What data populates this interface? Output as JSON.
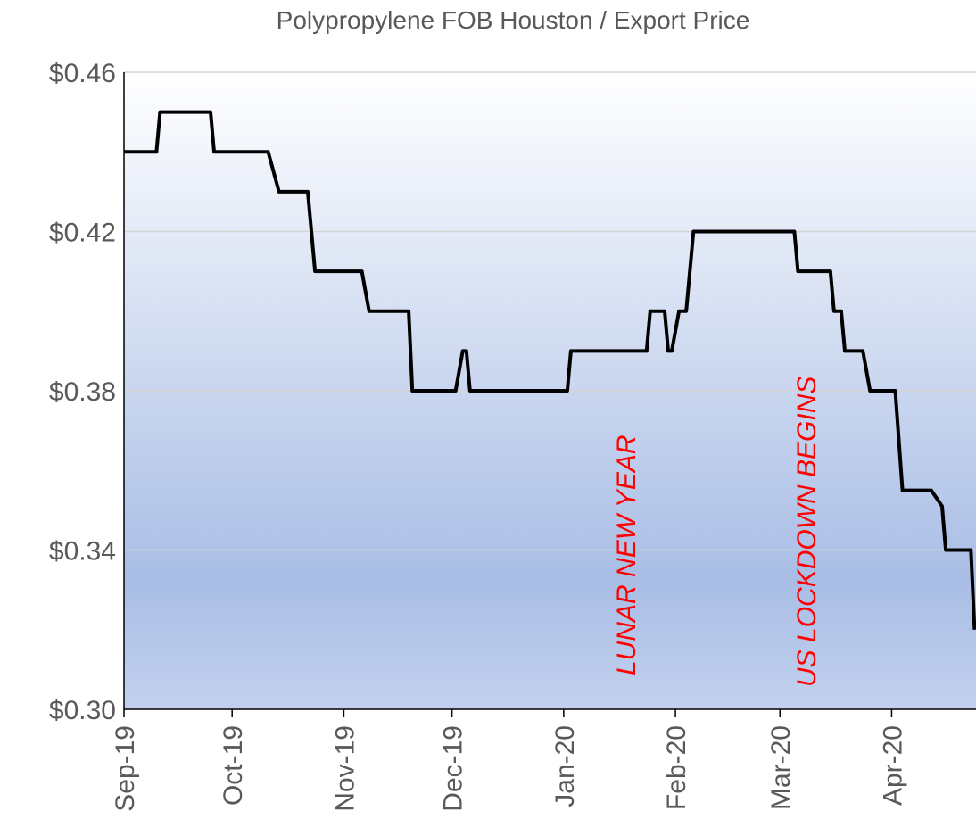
{
  "chart_data": {
    "type": "line",
    "title": "Polypropylene FOB Houston / Export Price",
    "x": [
      0,
      9,
      10,
      24,
      25,
      40,
      43,
      51,
      53,
      66,
      68,
      77,
      79,
      80,
      92,
      94,
      95,
      96,
      123,
      124,
      145,
      146,
      150,
      151,
      152,
      154,
      156,
      158,
      186,
      187,
      196,
      197,
      199,
      200,
      205,
      207,
      214,
      216,
      224,
      227,
      228,
      235,
      236
    ],
    "series": [
      {
        "name": "Polypropylene FOB Houston / Export Price",
        "color": "#000000",
        "values": [
          0.44,
          0.44,
          0.45,
          0.45,
          0.44,
          0.44,
          0.43,
          0.43,
          0.41,
          0.41,
          0.4,
          0.4,
          0.4,
          0.38,
          0.38,
          0.39,
          0.39,
          0.38,
          0.38,
          0.39,
          0.39,
          0.4,
          0.4,
          0.39,
          0.39,
          0.4,
          0.4,
          0.42,
          0.42,
          0.41,
          0.41,
          0.4,
          0.4,
          0.39,
          0.39,
          0.38,
          0.38,
          0.355,
          0.355,
          0.351,
          0.34,
          0.34,
          0.32
        ]
      }
    ],
    "xlim": [
      0,
      236.4
    ],
    "xticks": [
      {
        "value": 0,
        "label": "Sep-19"
      },
      {
        "value": 30,
        "label": "Oct-19"
      },
      {
        "value": 61,
        "label": "Nov-19"
      },
      {
        "value": 91,
        "label": "Dec-19"
      },
      {
        "value": 122,
        "label": "Jan-20"
      },
      {
        "value": 153,
        "label": "Feb-20"
      },
      {
        "value": 182,
        "label": "Mar-20"
      },
      {
        "value": 213,
        "label": "Apr-20"
      }
    ],
    "ylim": [
      0.3,
      0.46
    ],
    "yticks": [
      {
        "value": 0.3,
        "label": "$0.30"
      },
      {
        "value": 0.34,
        "label": "$0.34"
      },
      {
        "value": 0.38,
        "label": "$0.38"
      },
      {
        "value": 0.42,
        "label": "$0.42"
      },
      {
        "value": 0.46,
        "label": "$0.46"
      }
    ],
    "grid": true,
    "annotations": [
      "LUNAR NEW YEAR",
      "US LOCKDOWN BEGINS"
    ]
  }
}
